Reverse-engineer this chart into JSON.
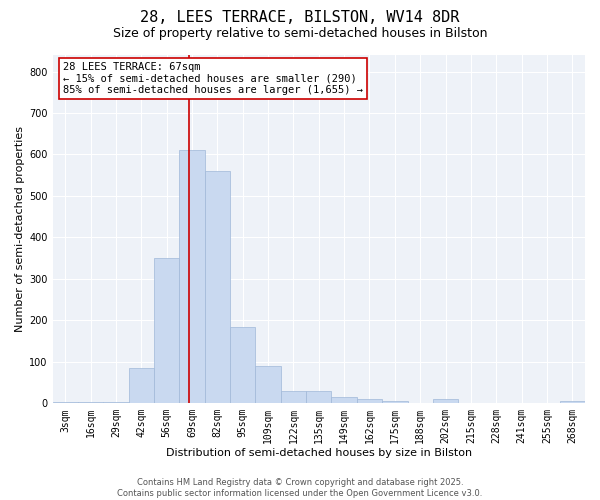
{
  "title": "28, LEES TERRACE, BILSTON, WV14 8DR",
  "subtitle": "Size of property relative to semi-detached houses in Bilston",
  "xlabel": "Distribution of semi-detached houses by size in Bilston",
  "ylabel": "Number of semi-detached properties",
  "categories": [
    "3sqm",
    "16sqm",
    "29sqm",
    "42sqm",
    "56sqm",
    "69sqm",
    "82sqm",
    "95sqm",
    "109sqm",
    "122sqm",
    "135sqm",
    "149sqm",
    "162sqm",
    "175sqm",
    "188sqm",
    "202sqm",
    "215sqm",
    "228sqm",
    "241sqm",
    "255sqm",
    "268sqm"
  ],
  "values": [
    2,
    4,
    4,
    85,
    350,
    610,
    560,
    185,
    90,
    30,
    30,
    15,
    10,
    5,
    0,
    10,
    0,
    0,
    0,
    0,
    5
  ],
  "bar_color": "#c9d9f0",
  "bar_edge_color": "#a0b8d8",
  "vline_color": "#cc0000",
  "annotation_text": "28 LEES TERRACE: 67sqm\n← 15% of semi-detached houses are smaller (290)\n85% of semi-detached houses are larger (1,655) →",
  "annotation_box_color": "#ffffff",
  "annotation_box_edge": "#cc0000",
  "ylim": [
    0,
    840
  ],
  "yticks": [
    0,
    100,
    200,
    300,
    400,
    500,
    600,
    700,
    800
  ],
  "background_color": "#eef2f8",
  "footer": "Contains HM Land Registry data © Crown copyright and database right 2025.\nContains public sector information licensed under the Open Government Licence v3.0.",
  "title_fontsize": 11,
  "subtitle_fontsize": 9,
  "xlabel_fontsize": 8,
  "ylabel_fontsize": 8,
  "tick_fontsize": 7,
  "annotation_fontsize": 7.5,
  "footer_fontsize": 6
}
